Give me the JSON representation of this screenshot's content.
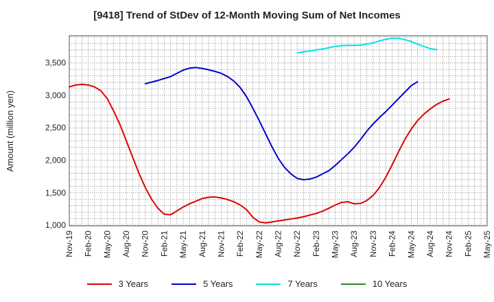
{
  "chart_data": {
    "type": "line",
    "title": "[9418]  Trend of StDev of 12-Month Moving Sum of Net Incomes",
    "ylabel": "Amount (million yen)",
    "xlabel": "",
    "ylim": [
      990,
      3920
    ],
    "yticks": [
      1000,
      1500,
      2000,
      2500,
      3000,
      3500
    ],
    "ytick_labels": [
      "1,000",
      "1,500",
      "2,000",
      "2,500",
      "3,000",
      "3,500"
    ],
    "x_tick_labels": [
      "Nov-19",
      "Feb-20",
      "May-20",
      "Aug-20",
      "Nov-20",
      "Feb-21",
      "May-21",
      "Aug-21",
      "Nov-21",
      "Feb-22",
      "May-22",
      "Aug-22",
      "Nov-22",
      "Feb-23",
      "May-23",
      "Aug-23",
      "Nov-23",
      "Feb-24",
      "May-24",
      "Aug-24",
      "Nov-24",
      "Feb-25",
      "May-25"
    ],
    "x_start": "2019-11",
    "x_count": 67,
    "grid": true,
    "legend_position": "bottom",
    "series": [
      {
        "name": "3 Years",
        "color": "#dd0000",
        "start": "2019-11",
        "values": [
          3130,
          3160,
          3170,
          3160,
          3130,
          3070,
          2950,
          2760,
          2550,
          2300,
          2050,
          1800,
          1580,
          1400,
          1260,
          1170,
          1160,
          1220,
          1280,
          1330,
          1370,
          1410,
          1430,
          1435,
          1420,
          1395,
          1360,
          1310,
          1240,
          1120,
          1050,
          1035,
          1050,
          1065,
          1080,
          1095,
          1110,
          1130,
          1155,
          1180,
          1215,
          1260,
          1310,
          1350,
          1360,
          1330,
          1335,
          1380,
          1460,
          1580,
          1740,
          1930,
          2130,
          2320,
          2480,
          2610,
          2710,
          2790,
          2860,
          2910,
          2945
        ]
      },
      {
        "name": "5 Years",
        "color": "#0000cc",
        "start": "2020-11",
        "values": [
          3180,
          3205,
          3230,
          3260,
          3290,
          3340,
          3390,
          3420,
          3430,
          3415,
          3395,
          3370,
          3340,
          3290,
          3220,
          3120,
          2980,
          2800,
          2610,
          2410,
          2210,
          2030,
          1890,
          1790,
          1720,
          1700,
          1710,
          1740,
          1790,
          1840,
          1920,
          2010,
          2100,
          2200,
          2320,
          2450,
          2560,
          2660,
          2750,
          2850,
          2950,
          3050,
          3150,
          3210
        ]
      },
      {
        "name": "7 Years",
        "color": "#00e5e5",
        "start": "2022-11",
        "values": [
          3655,
          3670,
          3685,
          3700,
          3715,
          3735,
          3755,
          3765,
          3770,
          3770,
          3775,
          3790,
          3810,
          3840,
          3865,
          3880,
          3880,
          3860,
          3830,
          3790,
          3755,
          3720,
          3705
        ]
      },
      {
        "name": "10 Years",
        "color": "#228b22",
        "start": "2024-11",
        "values": []
      }
    ]
  }
}
